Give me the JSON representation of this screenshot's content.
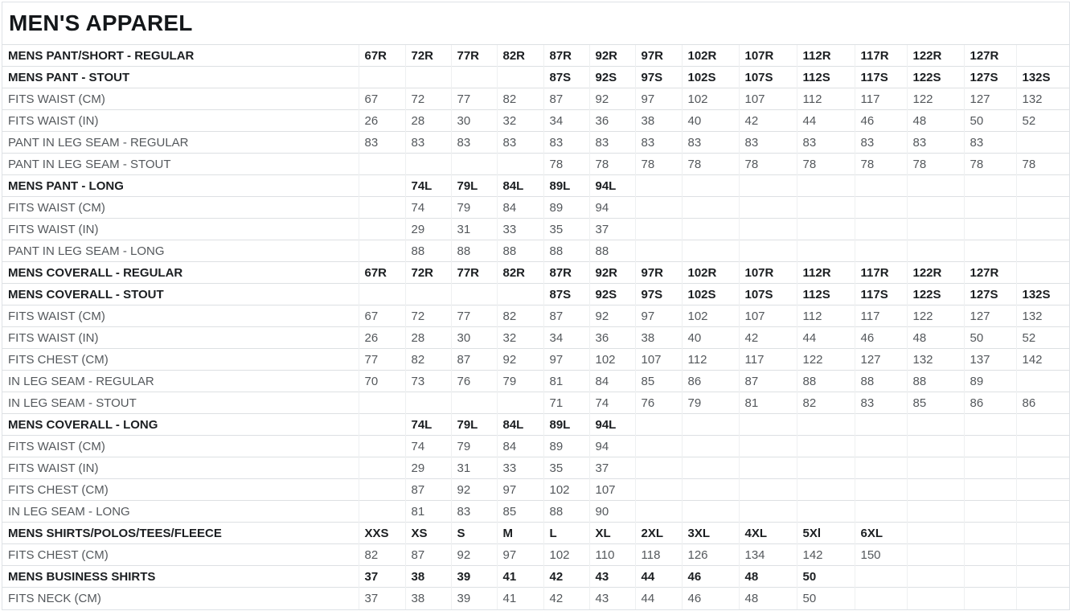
{
  "title": "MEN'S APPAREL",
  "table": {
    "rows": [
      {
        "label": "MENS PANT/SHORT - REGULAR",
        "bold": true,
        "values": [
          "67R",
          "72R",
          "77R",
          "82R",
          "87R",
          "92R",
          "97R",
          "102R",
          "107R",
          "112R",
          "117R",
          "122R",
          "127R",
          ""
        ]
      },
      {
        "label": "MENS PANT - STOUT",
        "bold": true,
        "values": [
          "",
          "",
          "",
          "",
          "87S",
          "92S",
          "97S",
          "102S",
          "107S",
          "112S",
          "117S",
          "122S",
          "127S",
          "132S"
        ]
      },
      {
        "label": "FITS WAIST (CM)",
        "bold": false,
        "values": [
          "67",
          "72",
          "77",
          "82",
          "87",
          "92",
          "97",
          "102",
          "107",
          "112",
          "117",
          "122",
          "127",
          "132"
        ]
      },
      {
        "label": "FITS WAIST (IN)",
        "bold": false,
        "values": [
          "26",
          "28",
          "30",
          "32",
          "34",
          "36",
          "38",
          "40",
          "42",
          "44",
          "46",
          "48",
          "50",
          "52"
        ]
      },
      {
        "label": "PANT IN LEG SEAM - REGULAR",
        "bold": false,
        "values": [
          "83",
          "83",
          "83",
          "83",
          "83",
          "83",
          "83",
          "83",
          "83",
          "83",
          "83",
          "83",
          "83",
          ""
        ]
      },
      {
        "label": "PANT IN LEG SEAM - STOUT",
        "bold": false,
        "values": [
          "",
          "",
          "",
          "",
          "78",
          "78",
          "78",
          "78",
          "78",
          "78",
          "78",
          "78",
          "78",
          "78"
        ]
      },
      {
        "label": "MENS PANT - LONG",
        "bold": true,
        "values": [
          "",
          "74L",
          "79L",
          "84L",
          "89L",
          "94L",
          "",
          "",
          "",
          "",
          "",
          "",
          "",
          ""
        ]
      },
      {
        "label": "FITS WAIST (CM)",
        "bold": false,
        "values": [
          "",
          "74",
          "79",
          "84",
          "89",
          "94",
          "",
          "",
          "",
          "",
          "",
          "",
          "",
          ""
        ]
      },
      {
        "label": "FITS WAIST (IN)",
        "bold": false,
        "values": [
          "",
          "29",
          "31",
          "33",
          "35",
          "37",
          "",
          "",
          "",
          "",
          "",
          "",
          "",
          ""
        ]
      },
      {
        "label": "PANT IN LEG SEAM - LONG",
        "bold": false,
        "values": [
          "",
          "88",
          "88",
          "88",
          "88",
          "88",
          "",
          "",
          "",
          "",
          "",
          "",
          "",
          ""
        ]
      },
      {
        "label": "MENS COVERALL - REGULAR",
        "bold": true,
        "values": [
          "67R",
          "72R",
          "77R",
          "82R",
          "87R",
          "92R",
          "97R",
          "102R",
          "107R",
          "112R",
          "117R",
          "122R",
          "127R",
          ""
        ]
      },
      {
        "label": "MENS COVERALL - STOUT",
        "bold": true,
        "values": [
          "",
          "",
          "",
          "",
          "87S",
          "92S",
          "97S",
          "102S",
          "107S",
          "112S",
          "117S",
          "122S",
          "127S",
          "132S"
        ]
      },
      {
        "label": "FITS WAIST (CM)",
        "bold": false,
        "values": [
          "67",
          "72",
          "77",
          "82",
          "87",
          "92",
          "97",
          "102",
          "107",
          "112",
          "117",
          "122",
          "127",
          "132"
        ]
      },
      {
        "label": "FITS WAIST (IN)",
        "bold": false,
        "values": [
          "26",
          "28",
          "30",
          "32",
          "34",
          "36",
          "38",
          "40",
          "42",
          "44",
          "46",
          "48",
          "50",
          "52"
        ]
      },
      {
        "label": "FITS CHEST (CM)",
        "bold": false,
        "values": [
          "77",
          "82",
          "87",
          "92",
          "97",
          "102",
          "107",
          "112",
          "117",
          "122",
          "127",
          "132",
          "137",
          "142"
        ]
      },
      {
        "label": "IN LEG SEAM - REGULAR",
        "bold": false,
        "values": [
          "70",
          "73",
          "76",
          "79",
          "81",
          "84",
          "85",
          "86",
          "87",
          "88",
          "88",
          "88",
          "89",
          ""
        ]
      },
      {
        "label": "IN LEG SEAM - STOUT",
        "bold": false,
        "values": [
          "",
          "",
          "",
          "",
          "71",
          "74",
          "76",
          "79",
          "81",
          "82",
          "83",
          "85",
          "86",
          "86"
        ]
      },
      {
        "label": "MENS COVERALL - LONG",
        "bold": true,
        "values": [
          "",
          "74L",
          "79L",
          "84L",
          "89L",
          "94L",
          "",
          "",
          "",
          "",
          "",
          "",
          "",
          ""
        ]
      },
      {
        "label": "FITS WAIST (CM)",
        "bold": false,
        "values": [
          "",
          "74",
          "79",
          "84",
          "89",
          "94",
          "",
          "",
          "",
          "",
          "",
          "",
          "",
          ""
        ]
      },
      {
        "label": "FITS WAIST (IN)",
        "bold": false,
        "values": [
          "",
          "29",
          "31",
          "33",
          "35",
          "37",
          "",
          "",
          "",
          "",
          "",
          "",
          "",
          ""
        ]
      },
      {
        "label": "FITS CHEST (CM)",
        "bold": false,
        "values": [
          "",
          "87",
          "92",
          "97",
          "102",
          "107",
          "",
          "",
          "",
          "",
          "",
          "",
          "",
          ""
        ]
      },
      {
        "label": "IN LEG SEAM - LONG",
        "bold": false,
        "values": [
          "",
          "81",
          "83",
          "85",
          "88",
          "90",
          "",
          "",
          "",
          "",
          "",
          "",
          "",
          ""
        ]
      },
      {
        "label": "MENS SHIRTS/POLOS/TEES/FLEECE",
        "bold": true,
        "values": [
          "XXS",
          "XS",
          "S",
          "M",
          "L",
          "XL",
          "2XL",
          "3XL",
          "4XL",
          "5Xl",
          "6XL",
          "",
          "",
          ""
        ]
      },
      {
        "label": "FITS CHEST (CM)",
        "bold": false,
        "values": [
          "82",
          "87",
          "92",
          "97",
          "102",
          "110",
          "118",
          "126",
          "134",
          "142",
          "150",
          "",
          "",
          ""
        ]
      },
      {
        "label": "MENS BUSINESS SHIRTS",
        "bold": true,
        "values": [
          "37",
          "38",
          "39",
          "41",
          "42",
          "43",
          "44",
          "46",
          "48",
          "50",
          "",
          "",
          "",
          ""
        ]
      },
      {
        "label": "FITS NECK (CM)",
        "bold": false,
        "values": [
          "37",
          "38",
          "39",
          "41",
          "42",
          "43",
          "44",
          "46",
          "48",
          "50",
          "",
          "",
          "",
          ""
        ]
      }
    ]
  }
}
